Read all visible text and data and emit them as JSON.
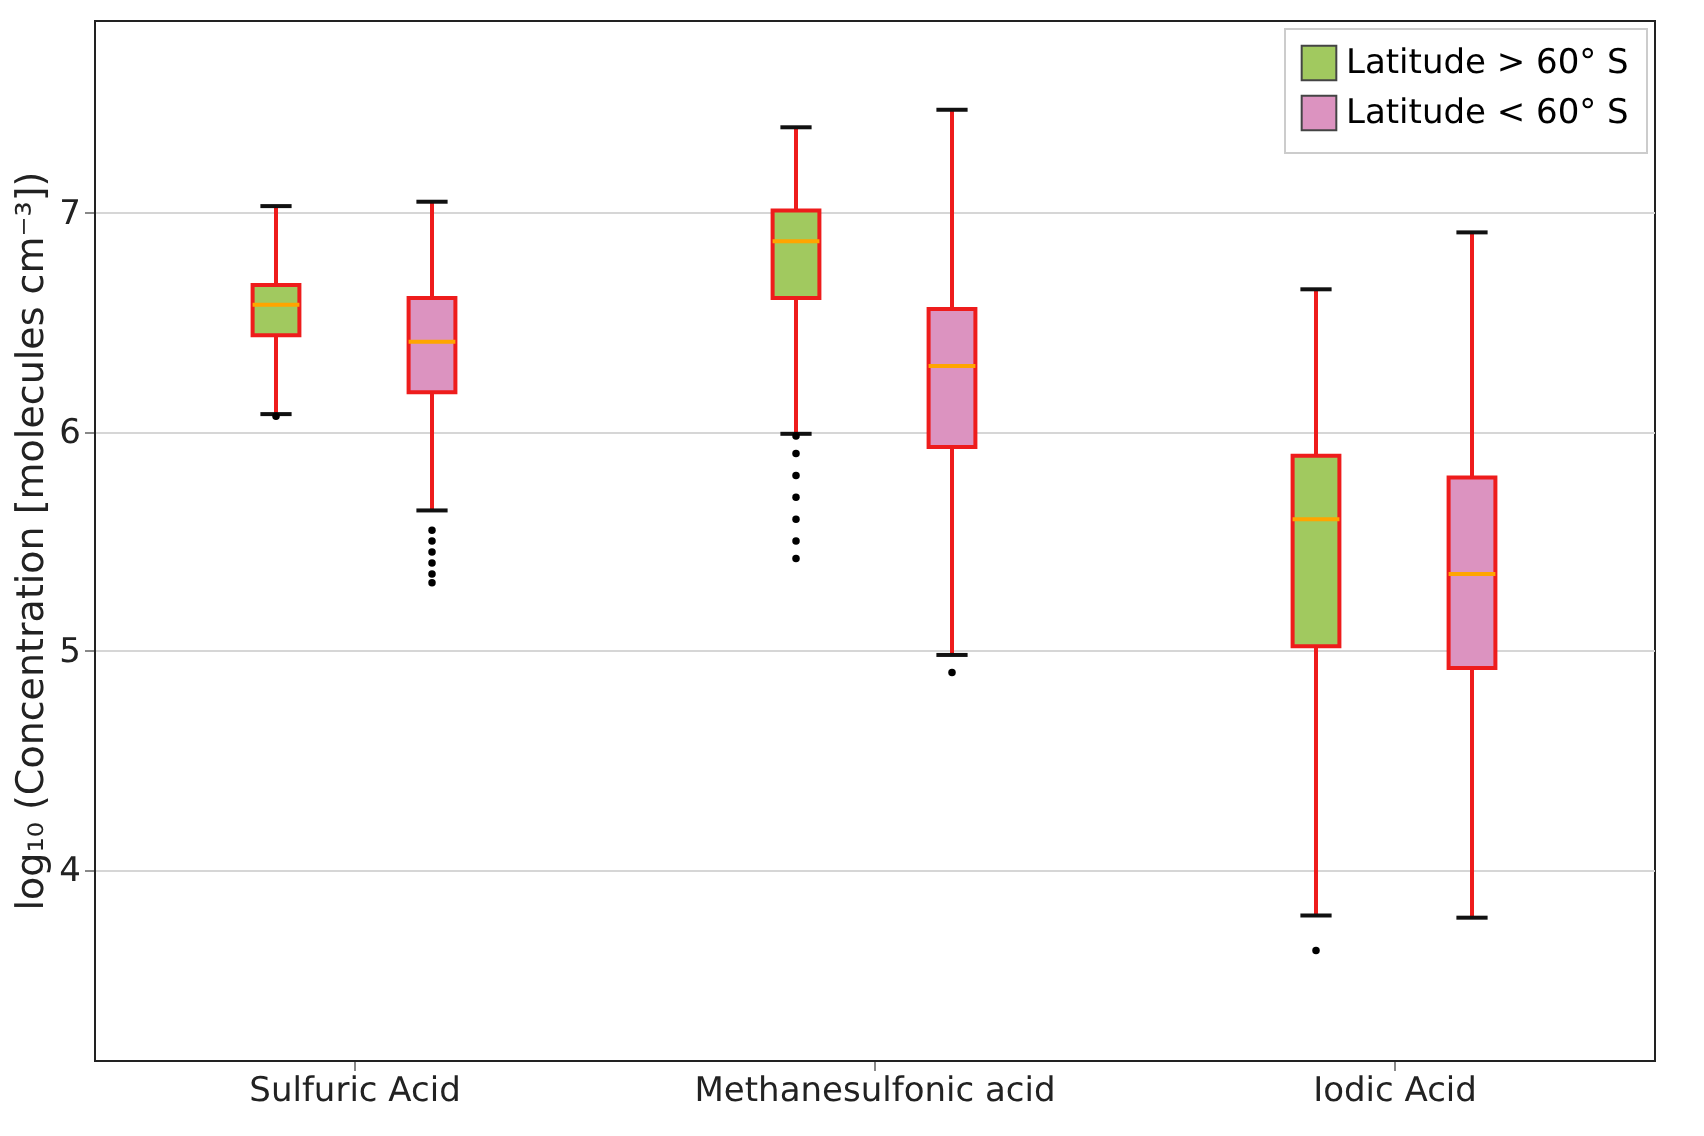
{
  "chart_data": {
    "type": "box",
    "ylabel": "log₁₀ (Concentration [molecules cm⁻³])",
    "categories": [
      "Sulfuric Acid",
      "Methanesulfonic acid",
      "Iodic Acid"
    ],
    "ylim": [
      3.13,
      7.88
    ],
    "yticks": [
      4,
      5,
      6,
      7
    ],
    "grid": "y",
    "legend": "top right",
    "series": [
      {
        "name": "Latitude > 60° S",
        "color": "#a1c95f",
        "boxes": [
          {
            "low": 6.08,
            "q1": 6.44,
            "median": 6.58,
            "q3": 6.67,
            "high": 7.03,
            "outliers": [
              6.07
            ]
          },
          {
            "low": 5.99,
            "q1": 6.61,
            "median": 6.87,
            "q3": 7.01,
            "high": 7.39,
            "outliers": [
              5.98,
              5.9,
              5.8,
              5.7,
              5.6,
              5.5,
              5.42
            ]
          },
          {
            "low": 3.79,
            "q1": 5.02,
            "median": 5.6,
            "q3": 5.89,
            "high": 6.65,
            "outliers": [
              3.63
            ]
          }
        ]
      },
      {
        "name": "Latitude < 60° S",
        "color": "#dc93c0",
        "boxes": [
          {
            "low": 5.64,
            "q1": 6.18,
            "median": 6.41,
            "q3": 6.61,
            "high": 7.05,
            "outliers": [
              5.55,
              5.5,
              5.45,
              5.4,
              5.35,
              5.31
            ]
          },
          {
            "low": 4.98,
            "q1": 5.93,
            "median": 6.3,
            "q3": 6.56,
            "high": 7.47,
            "outliers": [
              4.9
            ]
          },
          {
            "low": 3.78,
            "q1": 4.92,
            "median": 5.35,
            "q3": 5.79,
            "high": 6.91
          }
        ]
      }
    ]
  }
}
